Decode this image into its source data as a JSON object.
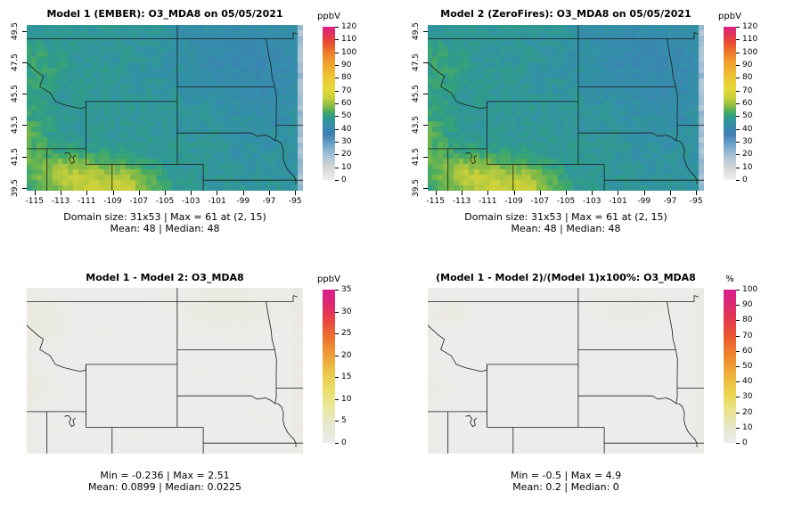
{
  "chart_data": [
    {
      "type": "heatmap",
      "title": "Model 1 (EMBER): O3_MDA8 on 05/05/2021",
      "variable": "O3_MDA8",
      "date": "05/05/2021",
      "colorbar_label": "ppbV",
      "colorbar_min": 0,
      "colorbar_max": 120,
      "colorbar_ticks": [
        0,
        10,
        20,
        30,
        40,
        50,
        60,
        70,
        80,
        90,
        100,
        110,
        120
      ],
      "colorbar_stops": [
        [
          0,
          "#f0f0f0"
        ],
        [
          10,
          "#d4d4d4"
        ],
        [
          18,
          "#aec6d8"
        ],
        [
          28,
          "#6da3c8"
        ],
        [
          36,
          "#3f7fb5"
        ],
        [
          44,
          "#3390a8"
        ],
        [
          50,
          "#2f9e85"
        ],
        [
          54,
          "#4fae5c"
        ],
        [
          58,
          "#8abc45"
        ],
        [
          64,
          "#c6cf3a"
        ],
        [
          72,
          "#e6d838"
        ],
        [
          82,
          "#edc233"
        ],
        [
          92,
          "#f0a02c"
        ],
        [
          100,
          "#ee7a2a"
        ],
        [
          108,
          "#e74b33"
        ],
        [
          114,
          "#e43158"
        ],
        [
          120,
          "#dc2189"
        ]
      ],
      "x_ticks": [
        -115,
        -113,
        -111,
        -109,
        -107,
        -105,
        -103,
        -101,
        -99,
        -97,
        -95
      ],
      "y_ticks": [
        39.5,
        41.5,
        43.5,
        45.5,
        47.5,
        49.5
      ],
      "x_range": [
        -115.6,
        -94.4
      ],
      "y_range": [
        39.33,
        49.87
      ],
      "show_axes": true,
      "field": "model",
      "domain_size": "31x53",
      "max": 61,
      "max_at": "(2, 15)",
      "mean": 48,
      "median": 48,
      "stats_line1": "Domain size: 31x53 | Max = 61 at (2, 15)",
      "stats_line2": "Mean: 48 |  Median: 48"
    },
    {
      "type": "heatmap",
      "title": "Model 2 (ZeroFires): O3_MDA8 on 05/05/2021",
      "variable": "O3_MDA8",
      "date": "05/05/2021",
      "colorbar_label": "ppbV",
      "colorbar_min": 0,
      "colorbar_max": 120,
      "colorbar_ticks": [
        0,
        10,
        20,
        30,
        40,
        50,
        60,
        70,
        80,
        90,
        100,
        110,
        120
      ],
      "colorbar_stops": [
        [
          0,
          "#f0f0f0"
        ],
        [
          10,
          "#d4d4d4"
        ],
        [
          18,
          "#aec6d8"
        ],
        [
          28,
          "#6da3c8"
        ],
        [
          36,
          "#3f7fb5"
        ],
        [
          44,
          "#3390a8"
        ],
        [
          50,
          "#2f9e85"
        ],
        [
          54,
          "#4fae5c"
        ],
        [
          58,
          "#8abc45"
        ],
        [
          64,
          "#c6cf3a"
        ],
        [
          72,
          "#e6d838"
        ],
        [
          82,
          "#edc233"
        ],
        [
          92,
          "#f0a02c"
        ],
        [
          100,
          "#ee7a2a"
        ],
        [
          108,
          "#e74b33"
        ],
        [
          114,
          "#e43158"
        ],
        [
          120,
          "#dc2189"
        ]
      ],
      "x_ticks": [
        -115,
        -113,
        -111,
        -109,
        -107,
        -105,
        -103,
        -101,
        -99,
        -97,
        -95
      ],
      "y_ticks": [
        39.5,
        41.5,
        43.5,
        45.5,
        47.5,
        49.5
      ],
      "x_range": [
        -115.6,
        -94.4
      ],
      "y_range": [
        39.33,
        49.87
      ],
      "show_axes": true,
      "field": "model",
      "domain_size": "31x53",
      "max": 61,
      "max_at": "(2, 15)",
      "mean": 48,
      "median": 48,
      "stats_line1": "Domain size: 31x53 | Max = 61 at (2, 15)",
      "stats_line2": "Mean: 48 |  Median: 48"
    },
    {
      "type": "heatmap",
      "title": "Model 1 - Model 2: O3_MDA8",
      "variable": "O3_MDA8",
      "colorbar_label": "ppbV",
      "colorbar_min": 0,
      "colorbar_max": 35,
      "colorbar_ticks": [
        0,
        5,
        10,
        15,
        20,
        25,
        30,
        35
      ],
      "colorbar_stops": [
        [
          0,
          "#ececec"
        ],
        [
          4,
          "#e7e7cf"
        ],
        [
          8,
          "#e9e9a0"
        ],
        [
          12,
          "#eade6a"
        ],
        [
          16,
          "#ecc84a"
        ],
        [
          20,
          "#ef9f38"
        ],
        [
          24,
          "#ee722e"
        ],
        [
          28,
          "#e8443f"
        ],
        [
          31,
          "#e02a68"
        ],
        [
          35,
          "#d81f8e"
        ]
      ],
      "x_ticks": [],
      "y_ticks": [],
      "x_range": [
        -115.6,
        -94.4
      ],
      "y_range": [
        39.33,
        49.87
      ],
      "show_axes": false,
      "field": "diff",
      "min": -0.236,
      "max": 2.51,
      "mean": 0.0899,
      "median": 0.0225,
      "stats_line1": "Min = -0.236 | Max = 2.51",
      "stats_line2": "Mean: 0.0899 |  Median: 0.0225"
    },
    {
      "type": "heatmap",
      "title": "(Model 1 - Model 2)/(Model 1)x100%: O3_MDA8",
      "variable": "O3_MDA8",
      "colorbar_label": "%",
      "colorbar_min": 0,
      "colorbar_max": 100,
      "colorbar_ticks": [
        0,
        10,
        20,
        30,
        40,
        50,
        60,
        70,
        80,
        90,
        100
      ],
      "colorbar_stops": [
        [
          0,
          "#ececec"
        ],
        [
          10,
          "#e6e6cc"
        ],
        [
          22,
          "#eae388"
        ],
        [
          32,
          "#ecd44e"
        ],
        [
          45,
          "#efae38"
        ],
        [
          58,
          "#ee822e"
        ],
        [
          70,
          "#ea5632"
        ],
        [
          82,
          "#e23553"
        ],
        [
          92,
          "#dd2776"
        ],
        [
          100,
          "#d81f8e"
        ]
      ],
      "x_ticks": [],
      "y_ticks": [],
      "x_range": [
        -115.6,
        -94.4
      ],
      "y_range": [
        39.33,
        49.87
      ],
      "show_axes": false,
      "field": "pct",
      "min": -0.5,
      "max": 4.9,
      "mean": 0.2,
      "median": 0,
      "stats_line1": "Min = -0.5 | Max = 4.9",
      "stats_line2": "Mean: 0.2 |  Median: 0"
    }
  ]
}
